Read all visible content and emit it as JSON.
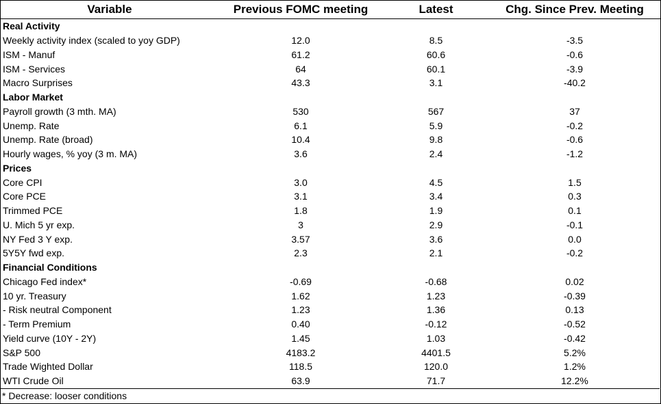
{
  "headers": {
    "variable": "Variable",
    "previous": "Previous FOMC meeting",
    "latest": "Latest",
    "change": "Chg. Since Prev. Meeting"
  },
  "rows": [
    {
      "type": "section",
      "label": "Real Activity"
    },
    {
      "type": "row",
      "label": "Weekly activity index (scaled to yoy GDP)",
      "previous": "12.0",
      "latest": "8.5",
      "change": "-3.5"
    },
    {
      "type": "row",
      "label": "ISM - Manuf",
      "previous": "61.2",
      "latest": "60.6",
      "change": "-0.6"
    },
    {
      "type": "row",
      "label": "ISM - Services",
      "previous": "64",
      "latest": "60.1",
      "change": "-3.9"
    },
    {
      "type": "row",
      "label": "Macro Surprises",
      "previous": "43.3",
      "latest": "3.1",
      "change": "-40.2"
    },
    {
      "type": "section",
      "label": "Labor Market"
    },
    {
      "type": "row",
      "label": "Payroll growth (3 mth. MA)",
      "previous": "530",
      "latest": "567",
      "change": "37"
    },
    {
      "type": "row",
      "label": "Unemp. Rate",
      "previous": "6.1",
      "latest": "5.9",
      "change": "-0.2"
    },
    {
      "type": "row",
      "label": "Unemp. Rate (broad)",
      "previous": "10.4",
      "latest": "9.8",
      "change": "-0.6"
    },
    {
      "type": "row",
      "label": "Hourly wages, % yoy (3 m. MA)",
      "previous": "3.6",
      "latest": "2.4",
      "change": "-1.2"
    },
    {
      "type": "section",
      "label": "Prices"
    },
    {
      "type": "row",
      "label": "Core CPI",
      "previous": "3.0",
      "latest": "4.5",
      "change": "1.5"
    },
    {
      "type": "row",
      "label": "Core PCE",
      "previous": "3.1",
      "latest": "3.4",
      "change": "0.3"
    },
    {
      "type": "row",
      "label": "Trimmed PCE",
      "previous": "1.8",
      "latest": "1.9",
      "change": "0.1"
    },
    {
      "type": "row",
      "label": "U. Mich 5 yr exp.",
      "previous": "3",
      "latest": "2.9",
      "change": "-0.1"
    },
    {
      "type": "row",
      "label": "NY Fed 3 Y exp.",
      "previous": "3.57",
      "latest": "3.6",
      "change": "0.0"
    },
    {
      "type": "row",
      "label": "5Y5Y fwd exp.",
      "previous": "2.3",
      "latest": "2.1",
      "change": "-0.2"
    },
    {
      "type": "section",
      "label": "Financial Conditions"
    },
    {
      "type": "row",
      "label": "Chicago Fed index*",
      "previous": "-0.69",
      "latest": "-0.68",
      "change": "0.02"
    },
    {
      "type": "row",
      "label": "10 yr. Treasury",
      "previous": "1.62",
      "latest": "1.23",
      "change": "-0.39"
    },
    {
      "type": "row",
      "label": " - Risk neutral Component",
      "previous": "1.23",
      "latest": "1.36",
      "change": "0.13"
    },
    {
      "type": "row",
      "label": " - Term Premium",
      "previous": "0.40",
      "latest": "-0.12",
      "change": "-0.52"
    },
    {
      "type": "row",
      "label": "Yield curve (10Y - 2Y)",
      "previous": "1.45",
      "latest": "1.03",
      "change": "-0.42"
    },
    {
      "type": "row",
      "label": "S&P 500",
      "previous": "4183.2",
      "latest": "4401.5",
      "change": "5.2%"
    },
    {
      "type": "row",
      "label": "Trade Wighted Dollar",
      "previous": "118.5",
      "latest": "120.0",
      "change": "1.2%"
    },
    {
      "type": "row",
      "label": "WTI Crude Oil",
      "previous": "63.9",
      "latest": "71.7",
      "change": "12.2%"
    }
  ],
  "footnote": "* Decrease: looser conditions"
}
